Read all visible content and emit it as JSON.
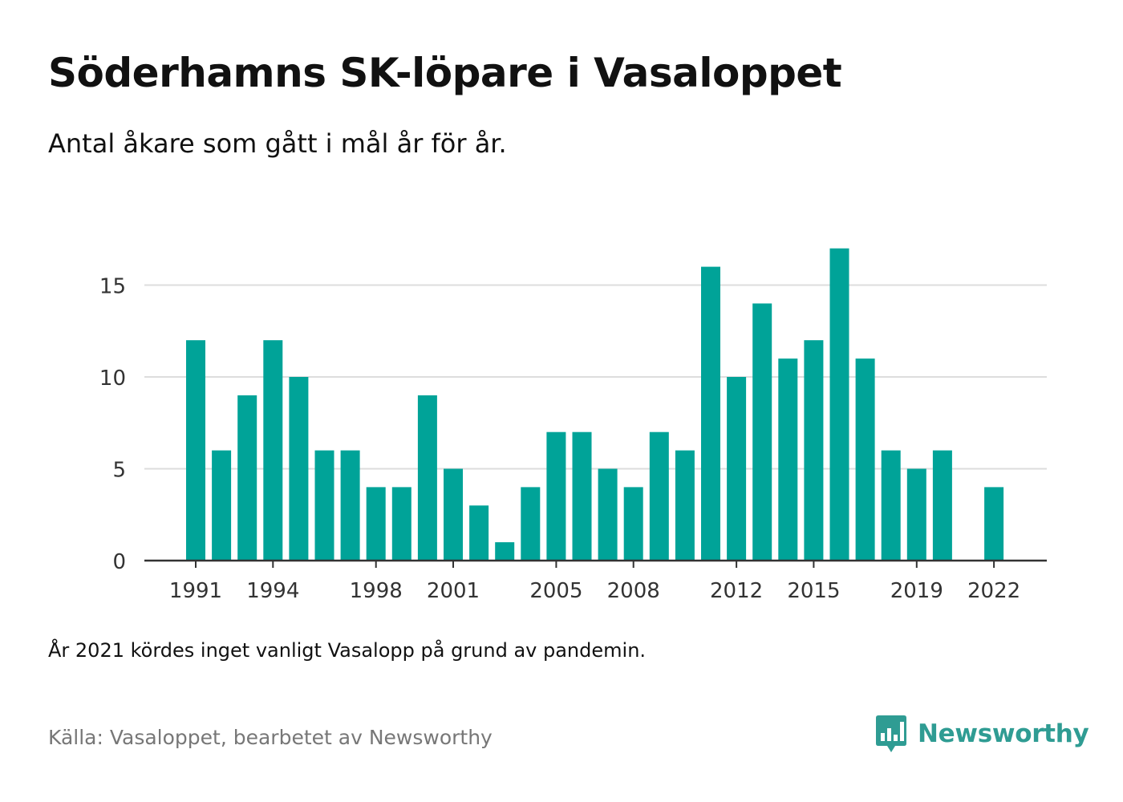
{
  "title": "Söderhamns SK-löpare i Vasaloppet",
  "subtitle": "Antal åkare som gått i mål år för år.",
  "note": "År 2021 kördes inget vanligt Vasalopp på grund av pandemin.",
  "source": "Källa: Vasaloppet, bearbetet av Newsworthy",
  "brand": {
    "name": "Newsworthy",
    "icon": "newsworthy-logo-icon",
    "color": "#2f9c93"
  },
  "chart_data": {
    "type": "bar",
    "categories": [
      1991,
      1992,
      1993,
      1994,
      1995,
      1996,
      1997,
      1998,
      1999,
      2000,
      2001,
      2002,
      2003,
      2004,
      2005,
      2006,
      2007,
      2008,
      2009,
      2010,
      2011,
      2012,
      2013,
      2014,
      2015,
      2016,
      2017,
      2018,
      2019,
      2020,
      2021,
      2022
    ],
    "values": [
      12,
      6,
      9,
      12,
      10,
      6,
      6,
      4,
      4,
      9,
      5,
      3,
      1,
      4,
      7,
      7,
      5,
      4,
      7,
      6,
      16,
      10,
      14,
      11,
      12,
      17,
      11,
      6,
      5,
      6,
      null,
      4
    ],
    "x_tick_labels": [
      "1991",
      "1994",
      "1998",
      "2001",
      "2005",
      "2008",
      "2012",
      "2015",
      "2019",
      "2022"
    ],
    "y_ticks": [
      0,
      5,
      10,
      15
    ],
    "ylim": [
      0,
      18
    ],
    "xlabel": "",
    "ylabel": "",
    "grid": true,
    "bar_color": "#00a398",
    "grid_color": "#dddddd",
    "axis_color": "#333333"
  }
}
